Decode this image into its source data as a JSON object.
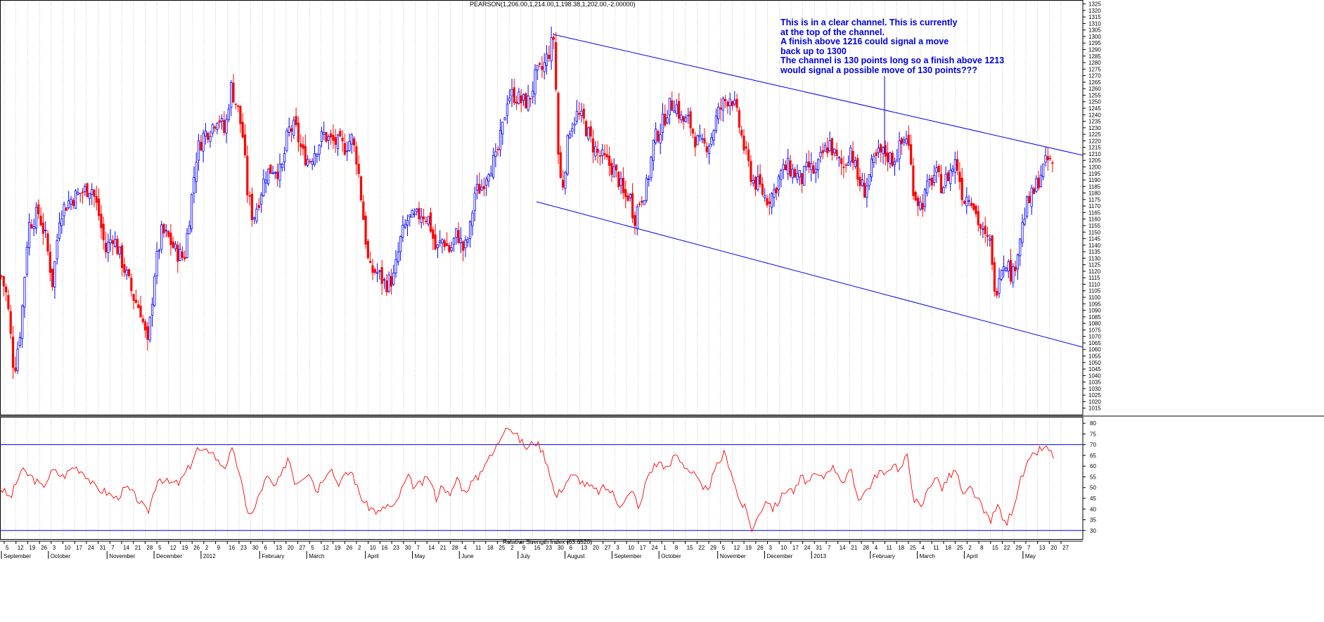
{
  "title": "PEARSON(1,206.00,1,214.00,1,198.38,1,202.00,-2.00000)",
  "annotation": [
    "This is in a clear channel. This is currently",
    "at the top of the channel.",
    "A finish above 1216 could signal a move",
    "back up to 1300",
    "The channel is 130 points long so a finish above 1213",
    "would signal a possible move of 130 points???"
  ],
  "colors": {
    "up": "#0000ff",
    "down": "#ff0000",
    "channel": "#0000ff",
    "rsi": "#ff0000",
    "grid": "#a0a0a0"
  },
  "chart_data": [
    {
      "type": "candlestick",
      "title": "PEARSON(1,206.00,1,214.00,1,198.38,1,202.00,-2.00000)",
      "ylim": [
        1010,
        1328
      ],
      "y_ticks": [
        1015,
        1020,
        1025,
        1030,
        1035,
        1040,
        1045,
        1050,
        1055,
        1060,
        1065,
        1070,
        1075,
        1080,
        1085,
        1090,
        1095,
        1100,
        1105,
        1110,
        1115,
        1120,
        1125,
        1130,
        1135,
        1140,
        1145,
        1150,
        1155,
        1160,
        1165,
        1170,
        1175,
        1180,
        1185,
        1190,
        1195,
        1200,
        1205,
        1210,
        1215,
        1220,
        1225,
        1230,
        1235,
        1240,
        1245,
        1250,
        1255,
        1260,
        1265,
        1270,
        1275,
        1280,
        1285,
        1290,
        1295,
        1300,
        1305,
        1310,
        1315,
        1320,
        1325
      ],
      "grid": true,
      "approx_path": [
        [
          0,
          1120
        ],
        [
          10,
          1100
        ],
        [
          20,
          1042
        ],
        [
          30,
          1080
        ],
        [
          40,
          1155
        ],
        [
          55,
          1165
        ],
        [
          65,
          1145
        ],
        [
          75,
          1110
        ],
        [
          85,
          1165
        ],
        [
          100,
          1175
        ],
        [
          115,
          1180
        ],
        [
          130,
          1185
        ],
        [
          140,
          1165
        ],
        [
          150,
          1135
        ],
        [
          160,
          1148
        ],
        [
          175,
          1125
        ],
        [
          190,
          1100
        ],
        [
          200,
          1090
        ],
        [
          210,
          1062
        ],
        [
          220,
          1120
        ],
        [
          230,
          1150
        ],
        [
          240,
          1145
        ],
        [
          250,
          1135
        ],
        [
          262,
          1130
        ],
        [
          270,
          1165
        ],
        [
          280,
          1212
        ],
        [
          290,
          1225
        ],
        [
          300,
          1230
        ],
        [
          310,
          1240
        ],
        [
          320,
          1225
        ],
        [
          328,
          1262
        ],
        [
          338,
          1245
        ],
        [
          345,
          1225
        ],
        [
          352,
          1180
        ],
        [
          360,
          1160
        ],
        [
          368,
          1175
        ],
        [
          378,
          1195
        ],
        [
          390,
          1200
        ],
        [
          400,
          1195
        ],
        [
          410,
          1228
        ],
        [
          420,
          1230
        ],
        [
          430,
          1210
        ],
        [
          440,
          1205
        ],
        [
          450,
          1215
        ],
        [
          460,
          1225
        ],
        [
          470,
          1220
        ],
        [
          480,
          1218
        ],
        [
          490,
          1215
        ],
        [
          500,
          1222
        ],
        [
          508,
          1205
        ],
        [
          515,
          1170
        ],
        [
          525,
          1120
        ],
        [
          535,
          1120
        ],
        [
          548,
          1110
        ],
        [
          560,
          1115
        ],
        [
          570,
          1145
        ],
        [
          580,
          1160
        ],
        [
          590,
          1160
        ],
        [
          600,
          1165
        ],
        [
          610,
          1160
        ],
        [
          620,
          1135
        ],
        [
          630,
          1145
        ],
        [
          640,
          1135
        ],
        [
          650,
          1150
        ],
        [
          660,
          1135
        ],
        [
          668,
          1150
        ],
        [
          675,
          1180
        ],
        [
          685,
          1185
        ],
        [
          695,
          1200
        ],
        [
          705,
          1205
        ],
        [
          715,
          1230
        ],
        [
          722,
          1255
        ],
        [
          732,
          1255
        ],
        [
          742,
          1250
        ],
        [
          752,
          1250
        ],
        [
          762,
          1270
        ],
        [
          772,
          1275
        ],
        [
          782,
          1290
        ],
        [
          788,
          1300
        ],
        [
          795,
          1195
        ],
        [
          800,
          1185
        ],
        [
          810,
          1230
        ],
        [
          820,
          1240
        ],
        [
          830,
          1235
        ],
        [
          840,
          1220
        ],
        [
          850,
          1210
        ],
        [
          860,
          1205
        ],
        [
          870,
          1200
        ],
        [
          880,
          1190
        ],
        [
          888,
          1175
        ],
        [
          895,
          1180
        ],
        [
          902,
          1160
        ],
        [
          910,
          1175
        ],
        [
          920,
          1185
        ],
        [
          930,
          1220
        ],
        [
          940,
          1230
        ],
        [
          950,
          1245
        ],
        [
          960,
          1250
        ],
        [
          970,
          1235
        ],
        [
          980,
          1235
        ],
        [
          990,
          1220
        ],
        [
          1000,
          1215
        ],
        [
          1010,
          1220
        ],
        [
          1020,
          1240
        ],
        [
          1030,
          1250
        ],
        [
          1040,
          1255
        ],
        [
          1050,
          1235
        ],
        [
          1060,
          1210
        ],
        [
          1070,
          1190
        ],
        [
          1080,
          1185
        ],
        [
          1090,
          1175
        ],
        [
          1100,
          1180
        ],
        [
          1110,
          1195
        ],
        [
          1120,
          1200
        ],
        [
          1130,
          1195
        ],
        [
          1140,
          1190
        ],
        [
          1150,
          1200
        ],
        [
          1160,
          1195
        ],
        [
          1170,
          1210
        ],
        [
          1180,
          1218
        ],
        [
          1190,
          1205
        ],
        [
          1200,
          1200
        ],
        [
          1210,
          1215
        ],
        [
          1220,
          1190
        ],
        [
          1230,
          1182
        ],
        [
          1240,
          1200
        ],
        [
          1250,
          1210
        ],
        [
          1260,
          1210
        ],
        [
          1270,
          1205
        ],
        [
          1280,
          1215
        ],
        [
          1290,
          1225
        ],
        [
          1300,
          1180
        ],
        [
          1310,
          1170
        ],
        [
          1320,
          1185
        ],
        [
          1330,
          1195
        ],
        [
          1340,
          1185
        ],
        [
          1350,
          1195
        ],
        [
          1360,
          1205
        ],
        [
          1370,
          1175
        ],
        [
          1380,
          1180
        ],
        [
          1390,
          1160
        ],
        [
          1400,
          1145
        ],
        [
          1410,
          1140
        ],
        [
          1415,
          1095
        ],
        [
          1420,
          1120
        ],
        [
          1430,
          1130
        ],
        [
          1440,
          1115
        ],
        [
          1450,
          1145
        ],
        [
          1460,
          1170
        ],
        [
          1470,
          1180
        ],
        [
          1480,
          1195
        ],
        [
          1490,
          1205
        ],
        [
          1500,
          1200
        ]
      ]
    },
    {
      "type": "line",
      "title": "Relative Strength Index (63.6520)",
      "ylim": [
        26,
        83
      ],
      "y_ticks": [
        30,
        35,
        40,
        45,
        50,
        55,
        60,
        65,
        70,
        75,
        80
      ],
      "reference_lines": [
        30,
        70
      ],
      "approx_path": [
        [
          0,
          50
        ],
        [
          15,
          45
        ],
        [
          30,
          58
        ],
        [
          45,
          55
        ],
        [
          60,
          50
        ],
        [
          75,
          58
        ],
        [
          90,
          55
        ],
        [
          105,
          60
        ],
        [
          120,
          57
        ],
        [
          135,
          50
        ],
        [
          150,
          48
        ],
        [
          165,
          45
        ],
        [
          180,
          50
        ],
        [
          195,
          45
        ],
        [
          210,
          38
        ],
        [
          225,
          55
        ],
        [
          240,
          52
        ],
        [
          255,
          52
        ],
        [
          270,
          60
        ],
        [
          280,
          68
        ],
        [
          290,
          66
        ],
        [
          300,
          68
        ],
        [
          310,
          62
        ],
        [
          320,
          60
        ],
        [
          330,
          67
        ],
        [
          340,
          58
        ],
        [
          350,
          40
        ],
        [
          360,
          38
        ],
        [
          370,
          48
        ],
        [
          380,
          55
        ],
        [
          390,
          50
        ],
        [
          400,
          55
        ],
        [
          410,
          65
        ],
        [
          420,
          52
        ],
        [
          430,
          55
        ],
        [
          440,
          58
        ],
        [
          450,
          48
        ],
        [
          460,
          55
        ],
        [
          470,
          60
        ],
        [
          480,
          52
        ],
        [
          490,
          55
        ],
        [
          500,
          58
        ],
        [
          510,
          48
        ],
        [
          520,
          42
        ],
        [
          530,
          40
        ],
        [
          540,
          38
        ],
        [
          550,
          42
        ],
        [
          560,
          40
        ],
        [
          570,
          48
        ],
        [
          580,
          55
        ],
        [
          590,
          50
        ],
        [
          600,
          52
        ],
        [
          610,
          55
        ],
        [
          620,
          45
        ],
        [
          630,
          52
        ],
        [
          640,
          45
        ],
        [
          650,
          55
        ],
        [
          660,
          48
        ],
        [
          670,
          52
        ],
        [
          680,
          55
        ],
        [
          690,
          62
        ],
        [
          700,
          65
        ],
        [
          710,
          72
        ],
        [
          720,
          80
        ],
        [
          730,
          76
        ],
        [
          740,
          72
        ],
        [
          750,
          68
        ],
        [
          760,
          72
        ],
        [
          770,
          68
        ],
        [
          780,
          60
        ],
        [
          790,
          45
        ],
        [
          800,
          50
        ],
        [
          810,
          55
        ],
        [
          820,
          55
        ],
        [
          830,
          52
        ],
        [
          840,
          50
        ],
        [
          850,
          48
        ],
        [
          860,
          50
        ],
        [
          870,
          48
        ],
        [
          880,
          42
        ],
        [
          890,
          45
        ],
        [
          900,
          48
        ],
        [
          910,
          40
        ],
        [
          920,
          55
        ],
        [
          930,
          60
        ],
        [
          940,
          62
        ],
        [
          950,
          58
        ],
        [
          960,
          66
        ],
        [
          970,
          62
        ],
        [
          980,
          58
        ],
        [
          990,
          55
        ],
        [
          1000,
          48
        ],
        [
          1010,
          52
        ],
        [
          1020,
          60
        ],
        [
          1030,
          66
        ],
        [
          1040,
          58
        ],
        [
          1050,
          45
        ],
        [
          1060,
          40
        ],
        [
          1070,
          30
        ],
        [
          1080,
          38
        ],
        [
          1090,
          45
        ],
        [
          1100,
          40
        ],
        [
          1110,
          45
        ],
        [
          1120,
          50
        ],
        [
          1130,
          48
        ],
        [
          1140,
          55
        ],
        [
          1150,
          52
        ],
        [
          1160,
          56
        ],
        [
          1170,
          54
        ],
        [
          1180,
          60
        ],
        [
          1190,
          58
        ],
        [
          1200,
          52
        ],
        [
          1210,
          58
        ],
        [
          1220,
          45
        ],
        [
          1230,
          48
        ],
        [
          1240,
          52
        ],
        [
          1250,
          58
        ],
        [
          1260,
          55
        ],
        [
          1270,
          62
        ],
        [
          1280,
          58
        ],
        [
          1290,
          65
        ],
        [
          1300,
          45
        ],
        [
          1310,
          40
        ],
        [
          1320,
          50
        ],
        [
          1330,
          55
        ],
        [
          1340,
          50
        ],
        [
          1350,
          55
        ],
        [
          1360,
          58
        ],
        [
          1370,
          45
        ],
        [
          1380,
          50
        ],
        [
          1390,
          45
        ],
        [
          1400,
          38
        ],
        [
          1410,
          35
        ],
        [
          1420,
          42
        ],
        [
          1430,
          32
        ],
        [
          1440,
          40
        ],
        [
          1450,
          52
        ],
        [
          1460,
          60
        ],
        [
          1470,
          65
        ],
        [
          1480,
          68
        ],
        [
          1490,
          68
        ],
        [
          1500,
          64
        ]
      ]
    }
  ],
  "x_labels": {
    "days": [
      "5",
      "12",
      "19",
      "26",
      "3",
      "10",
      "17",
      "24",
      "31",
      "7",
      "14",
      "21",
      "28",
      "5",
      "12",
      "19",
      "26",
      "2",
      "9",
      "16",
      "23",
      "30",
      "6",
      "13",
      "20",
      "27",
      "5",
      "12",
      "19",
      "26",
      "2",
      "10",
      "16",
      "23",
      "30",
      "7",
      "14",
      "21",
      "28",
      "4",
      "11",
      "18",
      "25",
      "2",
      "9",
      "16",
      "23",
      "30",
      "6",
      "13",
      "20",
      "27",
      "3",
      "10",
      "17",
      "24",
      "1",
      "8",
      "15",
      "22",
      "29",
      "5",
      "12",
      "19",
      "26",
      "3",
      "10",
      "17",
      "24",
      "31",
      "7",
      "14",
      "21",
      "28",
      "4",
      "11",
      "18",
      "25",
      "4",
      "11",
      "18",
      "25",
      "2",
      "8",
      "15",
      "22",
      "29",
      "7",
      "13",
      "20",
      "27"
    ],
    "months": [
      "September",
      "October",
      "November",
      "December",
      "2012",
      "February",
      "March",
      "April",
      "May",
      "June",
      "July",
      "August",
      "September",
      "October",
      "November",
      "December",
      "2013",
      "February",
      "March",
      "April",
      "May"
    ]
  }
}
